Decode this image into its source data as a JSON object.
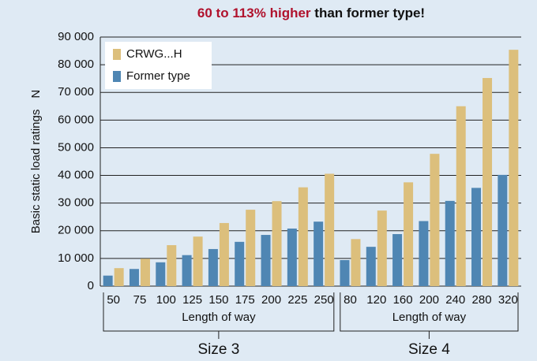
{
  "chart_data": {
    "type": "bar",
    "title_parts": [
      "60 to 113% higher",
      "than former type!"
    ],
    "ylabel": "Basic static load ratings",
    "yunit": "N",
    "groups": [
      {
        "name": "Size 3",
        "axis_label": "Length of way",
        "categories": [
          "50",
          "75",
          "100",
          "125",
          "150",
          "175",
          "200",
          "225",
          "250"
        ]
      },
      {
        "name": "Size 4",
        "axis_label": "Length of way",
        "categories": [
          "80",
          "120",
          "160",
          "200",
          "240",
          "280",
          "320"
        ]
      }
    ],
    "series": [
      {
        "name": "CRWG...H",
        "color": "#dcbf7c",
        "values": [
          6500,
          9900,
          14800,
          17900,
          22800,
          27600,
          30700,
          35700,
          40600,
          17000,
          27300,
          37500,
          47800,
          65000,
          75200,
          85400
        ]
      },
      {
        "name": "Former type",
        "color": "#4f86b3",
        "values": [
          3800,
          6200,
          8600,
          11200,
          13400,
          16000,
          18500,
          20800,
          23300,
          9400,
          14200,
          18800,
          23500,
          30800,
          35500,
          40200
        ]
      }
    ],
    "ylim": [
      0,
      90000
    ],
    "yticks": [
      0,
      {
        "value": 10000,
        "label": "10 000"
      },
      {
        "value": 20000,
        "label": "20 000"
      },
      {
        "value": 30000,
        "label": "30 000"
      },
      {
        "value": 40000,
        "label": "40 000"
      },
      {
        "value": 50000,
        "label": "50 000"
      },
      {
        "value": 60000,
        "label": "60 000"
      },
      {
        "value": 70000,
        "label": "70 000"
      },
      {
        "value": 80000,
        "label": "80 000"
      },
      {
        "value": 90000,
        "label": "90 000"
      }
    ],
    "grid": true,
    "legend": "upper left"
  }
}
